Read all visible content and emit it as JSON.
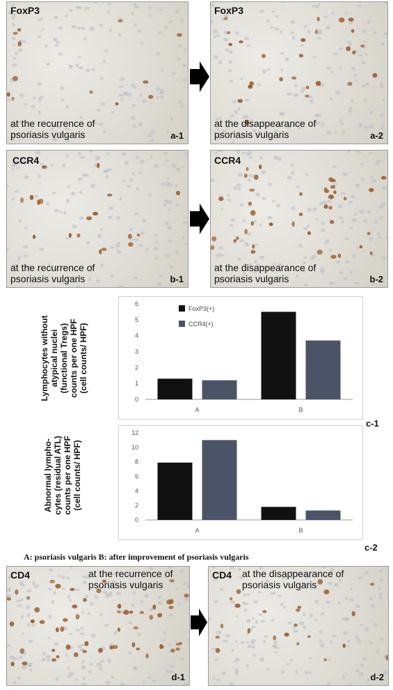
{
  "panels": [
    {
      "id": "a1",
      "stain": "FoxP3",
      "caption": [
        "at the recurrence of",
        "psoriasis vulgaris"
      ],
      "tag": "a-1"
    },
    {
      "id": "a2",
      "stain": "FoxP3",
      "caption": [
        "at the disappearance of",
        "psoriasis vulgaris"
      ],
      "tag": "a-2"
    },
    {
      "id": "b1",
      "stain": "CCR4",
      "caption": [
        "at the recurrence of",
        "psoriasis vulgaris"
      ],
      "tag": "b-1"
    },
    {
      "id": "b2",
      "stain": "CCR4",
      "caption": [
        "at the disappearance of",
        "psoriasis vulgaris"
      ],
      "tag": "b-2"
    },
    {
      "id": "d1",
      "stain": "CD4",
      "caption": [
        "at the recurrence of",
        "psoriasis vulgaris"
      ],
      "tag": "d-1"
    },
    {
      "id": "d2",
      "stain": "CD4",
      "caption": [
        "at the disappearance of",
        "psoriasis vulgaris"
      ],
      "tag": "d-2"
    }
  ],
  "chart_labels": {
    "c1_ylabel": [
      "Lymphocytes without",
      "atypical nuclei",
      "(functional Tregs)",
      "counts per one HPF",
      "(cell counts/ HPF)"
    ],
    "c2_ylabel": [
      "Abnormal lympho-",
      "cytes (residual ATL)",
      "counts per one HPF",
      "(cell counts/ HPF)"
    ],
    "c1_tag": "c-1",
    "c2_tag": "c-2"
  },
  "footer": "A: psoriasis vulgaris   B: after improvement of psoriasis vulgaris",
  "colors": {
    "foxp3": "#111111",
    "ccr4": "#4a5466",
    "stain": "#9a5a28"
  },
  "chart_data": [
    {
      "type": "bar",
      "categories": [
        "A",
        "B"
      ],
      "series": [
        {
          "name": "FoxP3(+)",
          "values": [
            1.3,
            5.5
          ]
        },
        {
          "name": "CCR4(+)",
          "values": [
            1.2,
            3.7
          ]
        }
      ],
      "yticks": [
        0,
        1,
        2,
        3,
        4,
        5,
        6
      ],
      "ylim": [
        0,
        6
      ],
      "legend": "top-left"
    },
    {
      "type": "bar",
      "categories": [
        "A",
        "B"
      ],
      "series": [
        {
          "values": [
            7.9,
            1.8
          ]
        },
        {
          "values": [
            11,
            1.3
          ]
        }
      ],
      "yticks": [
        0,
        2,
        4,
        6,
        8,
        10,
        12
      ],
      "ylim": [
        0,
        12
      ]
    }
  ]
}
